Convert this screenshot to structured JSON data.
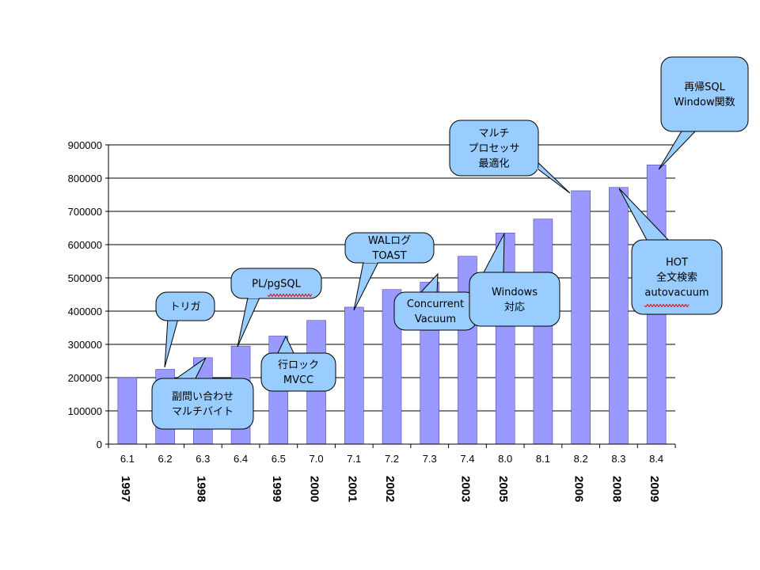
{
  "chart_data": {
    "type": "bar",
    "categories": [
      "6.1",
      "6.2",
      "6.3",
      "6.4",
      "6.5",
      "7.0",
      "7.1",
      "7.2",
      "7.3",
      "7.4",
      "8.0",
      "8.1",
      "8.2",
      "8.3",
      "8.4"
    ],
    "values": [
      200000,
      225000,
      260000,
      295000,
      325000,
      372000,
      412000,
      465000,
      487000,
      565000,
      635000,
      677000,
      762000,
      772000,
      840000
    ],
    "ylim": [
      0,
      900000
    ],
    "yticks": [
      "0",
      "100000",
      "200000",
      "300000",
      "400000",
      "500000",
      "600000",
      "700000",
      "800000",
      "900000"
    ],
    "grid": true,
    "legend": "none",
    "years": [
      {
        "category": "6.1",
        "label": "1997"
      },
      {
        "category": "6.3",
        "label": "1998"
      },
      {
        "category": "6.5",
        "label": "1999"
      },
      {
        "category": "7.0",
        "label": "2000"
      },
      {
        "category": "7.1",
        "label": "2001"
      },
      {
        "category": "7.2",
        "label": "2002"
      },
      {
        "category": "7.4",
        "label": "2003"
      },
      {
        "category": "8.0",
        "label": "2005"
      },
      {
        "category": "8.2",
        "label": "2006"
      },
      {
        "category": "8.3",
        "label": "2008"
      },
      {
        "category": "8.4",
        "label": "2009"
      }
    ],
    "annotations": [
      {
        "id": "trigger",
        "lines": [
          "トリガ"
        ]
      },
      {
        "id": "subquery",
        "lines": [
          "副問い合わせ",
          "マルチバイト"
        ]
      },
      {
        "id": "plpgsql",
        "lines": [
          "PL/pgSQL"
        ]
      },
      {
        "id": "rowlock",
        "lines": [
          "行ロック",
          "MVCC"
        ]
      },
      {
        "id": "wal",
        "lines": [
          "WALログ",
          "TOAST"
        ]
      },
      {
        "id": "concurrent",
        "lines": [
          "Concurrent",
          "Vacuum"
        ]
      },
      {
        "id": "windows",
        "lines": [
          "Windows",
          "対応"
        ]
      },
      {
        "id": "multiproc",
        "lines": [
          "マルチ",
          "プロセッサ",
          "最適化"
        ]
      },
      {
        "id": "recursive",
        "lines": [
          "再帰SQL",
          "Window関数"
        ]
      },
      {
        "id": "hot",
        "lines": [
          "HOT",
          "全文検索",
          "autovacuum"
        ]
      }
    ]
  },
  "colors": {
    "bar": "#9999ff",
    "bar_stroke": "#333399",
    "callout_fill": "#99ccff",
    "callout_stroke": "#000000",
    "grid": "#000000"
  }
}
